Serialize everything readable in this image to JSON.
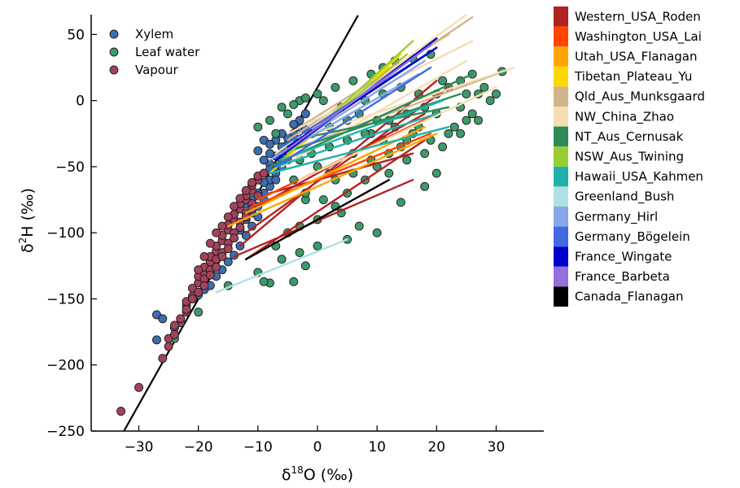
{
  "chart_data": {
    "type": "scatter",
    "title": "",
    "xlabel": "δ18O (‰)",
    "ylabel": "δ2H (‰)",
    "xlabel_parts": {
      "symbol": "δ",
      "sup": "18",
      "rest": "O (‰)"
    },
    "ylabel_parts": {
      "symbol": "δ",
      "sup": "2",
      "rest": "H (‰)"
    },
    "xlim": [
      -38,
      38
    ],
    "ylim": [
      -250,
      65
    ],
    "xticks": [
      -30,
      -20,
      -10,
      0,
      10,
      20,
      30
    ],
    "xtick_labels": [
      "−30",
      "−20",
      "−10",
      "0",
      "10",
      "20",
      "30"
    ],
    "yticks": [
      -250,
      -200,
      -150,
      -100,
      -50,
      0,
      50
    ],
    "ytick_labels": [
      "−250",
      "−200",
      "−150",
      "−100",
      "−50",
      "0",
      "50"
    ],
    "grid": false,
    "gmwl": {
      "slope": 8,
      "intercept": 10,
      "x_range": [
        -32.5,
        6.8
      ],
      "color": "#000000"
    },
    "legend_position": "top-left",
    "series": [
      {
        "name": "Xylem",
        "color": "#3E6DB0",
        "points": [
          [
            -27,
            -162
          ],
          [
            -26,
            -165
          ],
          [
            -27,
            -181
          ],
          [
            -24,
            -172
          ],
          [
            -22,
            -155
          ],
          [
            -20,
            -147
          ],
          [
            -19,
            -143
          ],
          [
            -18,
            -140
          ],
          [
            -17,
            -133
          ],
          [
            -16,
            -128
          ],
          [
            -15,
            -122
          ],
          [
            -14,
            -117
          ],
          [
            -13,
            -110
          ],
          [
            -12,
            -102
          ],
          [
            -11,
            -95
          ],
          [
            -10,
            -88
          ],
          [
            -10,
            -80
          ],
          [
            -9,
            -75
          ],
          [
            -9,
            -70
          ],
          [
            -8,
            -65
          ],
          [
            -8,
            -60
          ],
          [
            -7,
            -55
          ],
          [
            -7,
            -50
          ],
          [
            -6,
            -45
          ],
          [
            -6,
            -40
          ],
          [
            -5,
            -38
          ],
          [
            -5,
            -33
          ],
          [
            -4,
            -30
          ],
          [
            -4,
            -25
          ],
          [
            -3,
            -20
          ],
          [
            -3,
            -15
          ],
          [
            -2,
            -10
          ],
          [
            -9,
            -55
          ],
          [
            -8,
            -48
          ],
          [
            -7,
            -42
          ],
          [
            -10,
            -60
          ],
          [
            -11,
            -68
          ],
          [
            -12,
            -78
          ],
          [
            -11,
            -85
          ],
          [
            -9,
            -62
          ],
          [
            -8,
            -52
          ],
          [
            -6,
            -35
          ],
          [
            -5,
            -28
          ],
          [
            -10,
            -38
          ],
          [
            -9,
            -45
          ],
          [
            -7,
            -30
          ],
          [
            -6,
            -25
          ],
          [
            -4,
            -18
          ],
          [
            -12,
            -90
          ],
          [
            -13,
            -98
          ],
          [
            -11,
            -75
          ],
          [
            -10,
            -70
          ],
          [
            -8,
            -40
          ],
          [
            -7,
            -60
          ],
          [
            -6,
            -50
          ],
          [
            -5,
            -45
          ],
          [
            -3,
            -30
          ],
          [
            -2,
            -22
          ],
          [
            -9,
            -30
          ],
          [
            -8,
            -33
          ]
        ]
      },
      {
        "name": "Leaf water",
        "color": "#3E9A6A",
        "points": [
          [
            -24,
            -180
          ],
          [
            -20,
            -160
          ],
          [
            -15,
            -140
          ],
          [
            -10,
            -130
          ],
          [
            -8,
            -138
          ],
          [
            -9,
            -137
          ],
          [
            -4,
            -137
          ],
          [
            -2,
            -125
          ],
          [
            5,
            -105
          ],
          [
            14,
            -77
          ],
          [
            18,
            -65
          ],
          [
            20,
            -55
          ],
          [
            15,
            -30
          ],
          [
            12,
            -40
          ],
          [
            10,
            -50
          ],
          [
            8,
            -60
          ],
          [
            5,
            -70
          ],
          [
            3,
            -80
          ],
          [
            0,
            -90
          ],
          [
            -3,
            -95
          ],
          [
            -5,
            -100
          ],
          [
            -7,
            -110
          ],
          [
            -2,
            -75
          ],
          [
            2,
            -55
          ],
          [
            6,
            -40
          ],
          [
            9,
            -25
          ],
          [
            12,
            -15
          ],
          [
            15,
            -10
          ],
          [
            18,
            -5
          ],
          [
            20,
            5
          ],
          [
            22,
            10
          ],
          [
            24,
            15
          ],
          [
            26,
            20
          ],
          [
            28,
            10
          ],
          [
            30,
            5
          ],
          [
            31,
            22
          ],
          [
            29,
            0
          ],
          [
            27,
            -15
          ],
          [
            26,
            -10
          ],
          [
            23,
            -20
          ],
          [
            22,
            -25
          ],
          [
            25,
            -15
          ],
          [
            -5,
            -10
          ],
          [
            -3,
            0
          ],
          [
            0,
            5
          ],
          [
            3,
            10
          ],
          [
            6,
            15
          ],
          [
            9,
            20
          ],
          [
            11,
            25
          ],
          [
            13,
            30
          ],
          [
            16,
            32
          ],
          [
            19,
            35
          ],
          [
            -10,
            -20
          ],
          [
            -8,
            -15
          ],
          [
            -6,
            -5
          ],
          [
            -4,
            -3
          ],
          [
            -2,
            2
          ],
          [
            1,
            0
          ],
          [
            4,
            -5
          ],
          [
            7,
            -10
          ],
          [
            10,
            -15
          ],
          [
            13,
            -20
          ],
          [
            16,
            -25
          ],
          [
            19,
            -30
          ],
          [
            -1,
            -40
          ],
          [
            2,
            -35
          ],
          [
            5,
            -30
          ],
          [
            8,
            -25
          ],
          [
            11,
            -30
          ],
          [
            14,
            -35
          ],
          [
            17,
            -20
          ],
          [
            20,
            -10
          ],
          [
            -7,
            -25
          ],
          [
            -5,
            -35
          ],
          [
            -3,
            -45
          ],
          [
            0,
            -50
          ],
          [
            3,
            -60
          ],
          [
            6,
            -55
          ],
          [
            9,
            -45
          ],
          [
            12,
            -55
          ],
          [
            15,
            -45
          ],
          [
            18,
            -40
          ],
          [
            21,
            -35
          ],
          [
            24,
            -5
          ],
          [
            25,
            5
          ],
          [
            27,
            5
          ],
          [
            24,
            -25
          ],
          [
            21,
            15
          ],
          [
            17,
            5
          ],
          [
            14,
            10
          ],
          [
            11,
            5
          ],
          [
            8,
            0
          ],
          [
            5,
            -15
          ],
          [
            2,
            -20
          ],
          [
            -1,
            -25
          ],
          [
            -4,
            -60
          ],
          [
            -2,
            -70
          ],
          [
            1,
            -75
          ],
          [
            4,
            -85
          ],
          [
            7,
            -95
          ],
          [
            10,
            -100
          ],
          [
            -6,
            -120
          ],
          [
            -3,
            -115
          ],
          [
            0,
            -110
          ]
        ]
      },
      {
        "name": "Vapour",
        "color": "#A3435A",
        "points": [
          [
            -33,
            -235
          ],
          [
            -30,
            -217
          ],
          [
            -26,
            -195
          ],
          [
            -25,
            -186
          ],
          [
            -25,
            -180
          ],
          [
            -24,
            -177
          ],
          [
            -23,
            -168
          ],
          [
            -22,
            -160
          ],
          [
            -22,
            -152
          ],
          [
            -21,
            -148
          ],
          [
            -21,
            -142
          ],
          [
            -20,
            -138
          ],
          [
            -20,
            -133
          ],
          [
            -19,
            -130
          ],
          [
            -19,
            -126
          ],
          [
            -18,
            -122
          ],
          [
            -18,
            -118
          ],
          [
            -17,
            -114
          ],
          [
            -17,
            -110
          ],
          [
            -16,
            -106
          ],
          [
            -16,
            -102
          ],
          [
            -15,
            -98
          ],
          [
            -15,
            -94
          ],
          [
            -14,
            -90
          ],
          [
            -14,
            -86
          ],
          [
            -13,
            -82
          ],
          [
            -13,
            -78
          ],
          [
            -12,
            -75
          ],
          [
            -12,
            -72
          ],
          [
            -11,
            -68
          ],
          [
            -11,
            -64
          ],
          [
            -10,
            -60
          ],
          [
            -10,
            -57
          ],
          [
            -9,
            -55
          ],
          [
            -19,
            -135
          ],
          [
            -18,
            -128
          ],
          [
            -17,
            -120
          ],
          [
            -16,
            -115
          ],
          [
            -15,
            -108
          ],
          [
            -14,
            -100
          ],
          [
            -13,
            -92
          ],
          [
            -12,
            -85
          ],
          [
            -11,
            -78
          ],
          [
            -10,
            -72
          ],
          [
            -20,
            -145
          ],
          [
            -21,
            -150
          ],
          [
            -22,
            -158
          ],
          [
            -23,
            -165
          ],
          [
            -24,
            -170
          ],
          [
            -19,
            -140
          ],
          [
            -18,
            -132
          ],
          [
            -17,
            -126
          ],
          [
            -16,
            -118
          ],
          [
            -15,
            -112
          ],
          [
            -14,
            -104
          ],
          [
            -13,
            -96
          ],
          [
            -12,
            -88
          ],
          [
            -11,
            -82
          ],
          [
            -20,
            -128
          ],
          [
            -19,
            -118
          ],
          [
            -18,
            -108
          ],
          [
            -17,
            -100
          ],
          [
            -16,
            -95
          ],
          [
            -15,
            -88
          ],
          [
            -14,
            -80
          ],
          [
            -13,
            -74
          ],
          [
            -12,
            -68
          ],
          [
            -11,
            -62
          ]
        ]
      }
    ],
    "site_lines": [
      {
        "name": "Western_USA_Roden",
        "color": "#B22222",
        "segments": [
          [
            -13,
            -110,
            20,
            15
          ],
          [
            -12,
            -120,
            18,
            -30
          ],
          [
            -14,
            -118,
            16,
            -60
          ],
          [
            -10,
            -80,
            18,
            -10
          ],
          [
            -8,
            -70,
            16,
            -40
          ],
          [
            -12,
            -100,
            22,
            10
          ]
        ]
      },
      {
        "name": "Washington_USA_Lai",
        "color": "#FF4500",
        "segments": [
          [
            -10,
            -75,
            20,
            -10
          ],
          [
            -11,
            -80,
            19,
            -25
          ]
        ]
      },
      {
        "name": "Utah_USA_Flanagan",
        "color": "#FFA500",
        "segments": [
          [
            -15,
            -95,
            20,
            -25
          ],
          [
            -12,
            -85,
            18,
            -20
          ]
        ]
      },
      {
        "name": "Tibetan_Plateau_Yu",
        "color": "#FFD700",
        "segments": [
          [
            -8,
            -55,
            14,
            35
          ],
          [
            -6,
            -45,
            12,
            25
          ]
        ]
      },
      {
        "name": "Qld_Aus_Munksgaard",
        "color": "#D2B48C",
        "segments": [
          [
            -5,
            -30,
            26,
            63
          ],
          [
            -3,
            -20,
            22,
            50
          ],
          [
            -6,
            -40,
            30,
            20
          ]
        ]
      },
      {
        "name": "NW_China_Zhao",
        "color": "#F5DEB3",
        "segments": [
          [
            -7,
            -40,
            25,
            65
          ],
          [
            -5,
            -25,
            26,
            45
          ],
          [
            -4,
            -30,
            33,
            25
          ],
          [
            -6,
            -50,
            25,
            30
          ],
          [
            -3,
            -60,
            30,
            10
          ]
        ]
      },
      {
        "name": "NT_Aus_Cernusak",
        "color": "#2E8B57",
        "segments": [
          [
            -8,
            -50,
            26,
            20
          ],
          [
            -6,
            -40,
            24,
            5
          ],
          [
            -4,
            -30,
            22,
            -5
          ]
        ]
      },
      {
        "name": "NSW_Aus_Twining",
        "color": "#9ACD32",
        "segments": [
          [
            -6,
            -45,
            16,
            45
          ],
          [
            -5,
            -40,
            15,
            35
          ]
        ]
      },
      {
        "name": "Hawaii_USA_Kahmen",
        "color": "#20B2AA",
        "segments": [
          [
            -8,
            -55,
            22,
            -20
          ],
          [
            -7,
            -50,
            20,
            -10
          ],
          [
            -6,
            -45,
            21,
            0
          ]
        ]
      },
      {
        "name": "Greenland_Bush",
        "color": "#B0E0E6",
        "segments": [
          [
            -17,
            -145,
            5,
            -105
          ]
        ]
      },
      {
        "name": "Germany_Hirl",
        "color": "#87A8E8",
        "segments": [
          [
            -8,
            -45,
            18,
            30
          ],
          [
            -6,
            -40,
            17,
            20
          ]
        ]
      },
      {
        "name": "Germany_Bögelein",
        "color": "#4169E1",
        "segments": [
          [
            -7,
            -50,
            19,
            25
          ],
          [
            -6,
            -35,
            20,
            40
          ]
        ]
      },
      {
        "name": "France_Wingate",
        "color": "#0000CD",
        "segments": [
          [
            -7,
            -45,
            20,
            47
          ],
          [
            -5,
            -35,
            20,
            40
          ]
        ]
      },
      {
        "name": "France_Barbeta",
        "color": "#9370DB",
        "segments": [
          [
            -6,
            -40,
            19,
            42
          ]
        ]
      },
      {
        "name": "Canada_Flanagan",
        "color": "#000000",
        "segments": [
          [
            -12,
            -120,
            12,
            -60
          ]
        ]
      }
    ]
  }
}
